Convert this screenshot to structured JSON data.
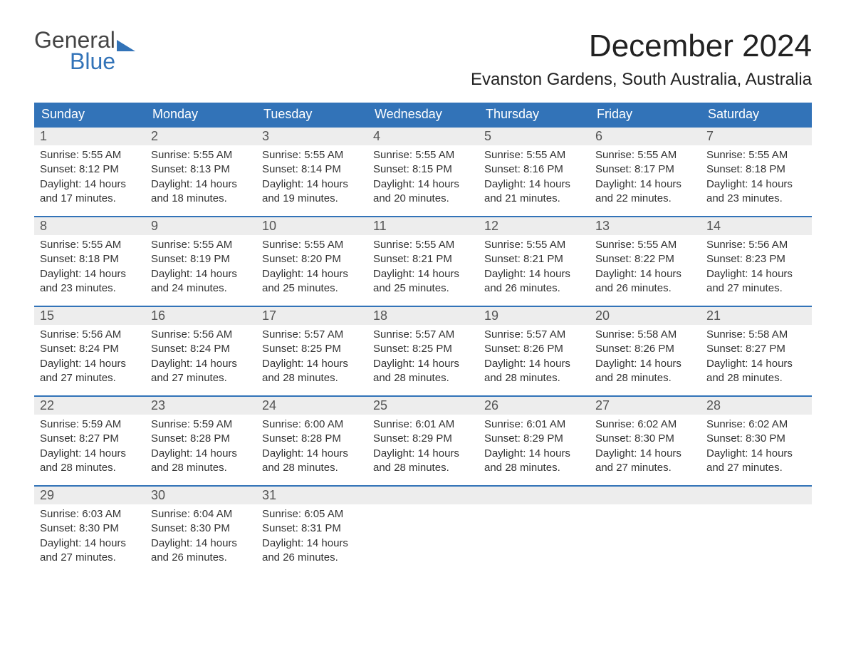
{
  "logo": {
    "word1": "General",
    "word2": "Blue",
    "text_color": "#444444",
    "accent_color": "#3273b8"
  },
  "title": "December 2024",
  "location": "Evanston Gardens, South Australia, Australia",
  "colors": {
    "header_bg": "#3273b8",
    "header_text": "#ffffff",
    "daynum_bg": "#ededed",
    "daynum_text": "#555555",
    "body_text": "#333333",
    "week_border": "#3273b8",
    "page_bg": "#ffffff"
  },
  "typography": {
    "month_title_fontsize": 44,
    "location_fontsize": 24,
    "header_cell_fontsize": 18,
    "daynum_fontsize": 18,
    "body_fontsize": 15,
    "font_family": "Arial"
  },
  "layout": {
    "columns": 7,
    "rows": 5,
    "start_weekday": "Sunday"
  },
  "weekdays": [
    "Sunday",
    "Monday",
    "Tuesday",
    "Wednesday",
    "Thursday",
    "Friday",
    "Saturday"
  ],
  "days": [
    {
      "n": "1",
      "sunrise": "5:55 AM",
      "sunset": "8:12 PM",
      "daylight": "14 hours and 17 minutes."
    },
    {
      "n": "2",
      "sunrise": "5:55 AM",
      "sunset": "8:13 PM",
      "daylight": "14 hours and 18 minutes."
    },
    {
      "n": "3",
      "sunrise": "5:55 AM",
      "sunset": "8:14 PM",
      "daylight": "14 hours and 19 minutes."
    },
    {
      "n": "4",
      "sunrise": "5:55 AM",
      "sunset": "8:15 PM",
      "daylight": "14 hours and 20 minutes."
    },
    {
      "n": "5",
      "sunrise": "5:55 AM",
      "sunset": "8:16 PM",
      "daylight": "14 hours and 21 minutes."
    },
    {
      "n": "6",
      "sunrise": "5:55 AM",
      "sunset": "8:17 PM",
      "daylight": "14 hours and 22 minutes."
    },
    {
      "n": "7",
      "sunrise": "5:55 AM",
      "sunset": "8:18 PM",
      "daylight": "14 hours and 23 minutes."
    },
    {
      "n": "8",
      "sunrise": "5:55 AM",
      "sunset": "8:18 PM",
      "daylight": "14 hours and 23 minutes."
    },
    {
      "n": "9",
      "sunrise": "5:55 AM",
      "sunset": "8:19 PM",
      "daylight": "14 hours and 24 minutes."
    },
    {
      "n": "10",
      "sunrise": "5:55 AM",
      "sunset": "8:20 PM",
      "daylight": "14 hours and 25 minutes."
    },
    {
      "n": "11",
      "sunrise": "5:55 AM",
      "sunset": "8:21 PM",
      "daylight": "14 hours and 25 minutes."
    },
    {
      "n": "12",
      "sunrise": "5:55 AM",
      "sunset": "8:21 PM",
      "daylight": "14 hours and 26 minutes."
    },
    {
      "n": "13",
      "sunrise": "5:55 AM",
      "sunset": "8:22 PM",
      "daylight": "14 hours and 26 minutes."
    },
    {
      "n": "14",
      "sunrise": "5:56 AM",
      "sunset": "8:23 PM",
      "daylight": "14 hours and 27 minutes."
    },
    {
      "n": "15",
      "sunrise": "5:56 AM",
      "sunset": "8:24 PM",
      "daylight": "14 hours and 27 minutes."
    },
    {
      "n": "16",
      "sunrise": "5:56 AM",
      "sunset": "8:24 PM",
      "daylight": "14 hours and 27 minutes."
    },
    {
      "n": "17",
      "sunrise": "5:57 AM",
      "sunset": "8:25 PM",
      "daylight": "14 hours and 28 minutes."
    },
    {
      "n": "18",
      "sunrise": "5:57 AM",
      "sunset": "8:25 PM",
      "daylight": "14 hours and 28 minutes."
    },
    {
      "n": "19",
      "sunrise": "5:57 AM",
      "sunset": "8:26 PM",
      "daylight": "14 hours and 28 minutes."
    },
    {
      "n": "20",
      "sunrise": "5:58 AM",
      "sunset": "8:26 PM",
      "daylight": "14 hours and 28 minutes."
    },
    {
      "n": "21",
      "sunrise": "5:58 AM",
      "sunset": "8:27 PM",
      "daylight": "14 hours and 28 minutes."
    },
    {
      "n": "22",
      "sunrise": "5:59 AM",
      "sunset": "8:27 PM",
      "daylight": "14 hours and 28 minutes."
    },
    {
      "n": "23",
      "sunrise": "5:59 AM",
      "sunset": "8:28 PM",
      "daylight": "14 hours and 28 minutes."
    },
    {
      "n": "24",
      "sunrise": "6:00 AM",
      "sunset": "8:28 PM",
      "daylight": "14 hours and 28 minutes."
    },
    {
      "n": "25",
      "sunrise": "6:01 AM",
      "sunset": "8:29 PM",
      "daylight": "14 hours and 28 minutes."
    },
    {
      "n": "26",
      "sunrise": "6:01 AM",
      "sunset": "8:29 PM",
      "daylight": "14 hours and 28 minutes."
    },
    {
      "n": "27",
      "sunrise": "6:02 AM",
      "sunset": "8:30 PM",
      "daylight": "14 hours and 27 minutes."
    },
    {
      "n": "28",
      "sunrise": "6:02 AM",
      "sunset": "8:30 PM",
      "daylight": "14 hours and 27 minutes."
    },
    {
      "n": "29",
      "sunrise": "6:03 AM",
      "sunset": "8:30 PM",
      "daylight": "14 hours and 27 minutes."
    },
    {
      "n": "30",
      "sunrise": "6:04 AM",
      "sunset": "8:30 PM",
      "daylight": "14 hours and 26 minutes."
    },
    {
      "n": "31",
      "sunrise": "6:05 AM",
      "sunset": "8:31 PM",
      "daylight": "14 hours and 26 minutes."
    }
  ],
  "labels": {
    "sunrise": "Sunrise:",
    "sunset": "Sunset:",
    "daylight": "Daylight:"
  }
}
